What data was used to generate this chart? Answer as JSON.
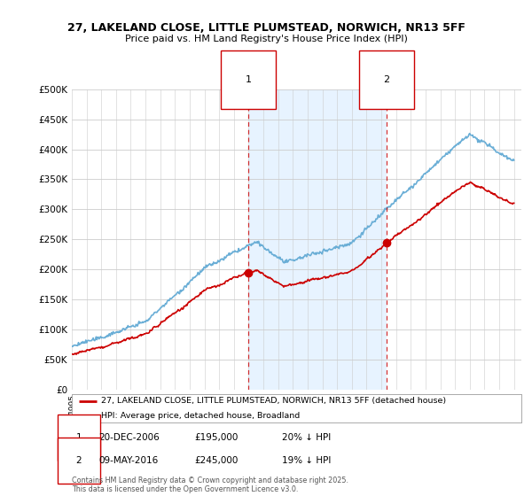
{
  "title_line1": "27, LAKELAND CLOSE, LITTLE PLUMSTEAD, NORWICH, NR13 5FF",
  "title_line2": "Price paid vs. HM Land Registry's House Price Index (HPI)",
  "ylim": [
    0,
    500000
  ],
  "yticks": [
    0,
    50000,
    100000,
    150000,
    200000,
    250000,
    300000,
    350000,
    400000,
    450000,
    500000
  ],
  "ytick_labels": [
    "£0",
    "£50K",
    "£100K",
    "£150K",
    "£200K",
    "£250K",
    "£300K",
    "£350K",
    "£400K",
    "£450K",
    "£500K"
  ],
  "hpi_color": "#6aaed6",
  "price_color": "#cc0000",
  "marker1_year": 2006.97,
  "marker1_price": 195000,
  "marker2_year": 2016.36,
  "marker2_price": 245000,
  "legend_property": "27, LAKELAND CLOSE, LITTLE PLUMSTEAD, NORWICH, NR13 5FF (detached house)",
  "legend_hpi": "HPI: Average price, detached house, Broadland",
  "footnote": "Contains HM Land Registry data © Crown copyright and database right 2025.\nThis data is licensed under the Open Government Licence v3.0.",
  "table_row1": [
    "1",
    "20-DEC-2006",
    "£195,000",
    "20% ↓ HPI"
  ],
  "table_row2": [
    "2",
    "09-MAY-2016",
    "£245,000",
    "19% ↓ HPI"
  ],
  "bg_color": "#ffffff",
  "plot_bg_color": "#ffffff",
  "shade_color": "#ddeeff"
}
